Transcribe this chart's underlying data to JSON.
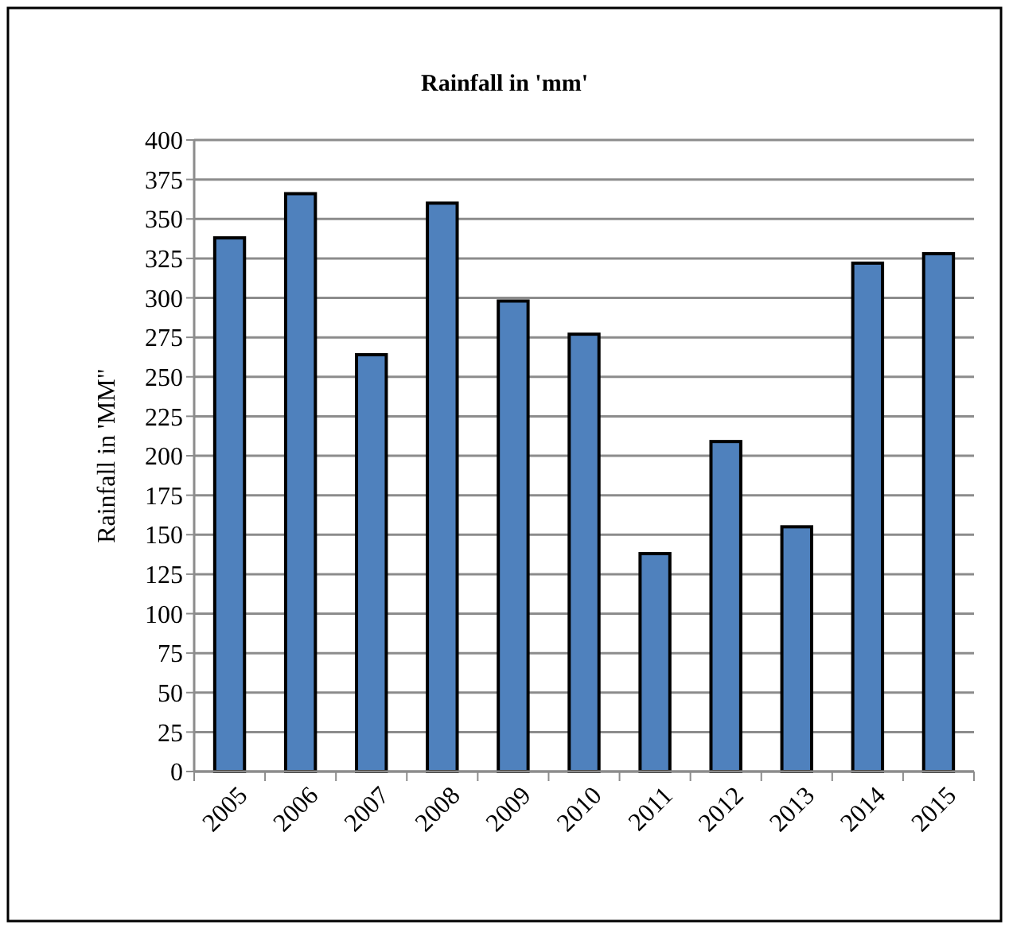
{
  "chart_data": {
    "type": "bar",
    "title": "Rainfall in 'mm'",
    "ylabel": "Rainfall in 'MM\"",
    "categories": [
      "2005",
      "2006",
      "2007",
      "2008",
      "2009",
      "2010",
      "2011",
      "2012",
      "2013",
      "2014",
      "2015"
    ],
    "values": [
      338,
      366,
      264,
      360,
      298,
      277,
      138,
      209,
      155,
      322,
      328
    ],
    "color": "#4f81bd",
    "ylim": [
      0,
      400
    ],
    "yticks": [
      0,
      25,
      50,
      75,
      100,
      125,
      150,
      175,
      200,
      225,
      250,
      275,
      300,
      325,
      350,
      375,
      400
    ],
    "grid": "y"
  }
}
